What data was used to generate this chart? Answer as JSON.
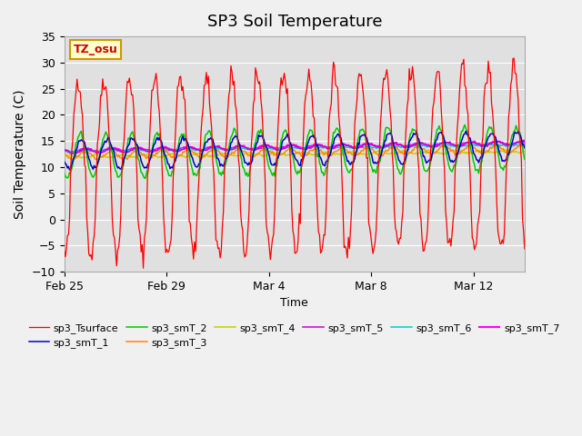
{
  "title": "SP3 Soil Temperature",
  "ylabel": "Soil Temperature (C)",
  "xlabel": "Time",
  "ylim": [
    -10,
    35
  ],
  "annotation_text": "TZ_osu",
  "annotation_bg": "#ffffcc",
  "annotation_border": "#cc9900",
  "series_colors": {
    "sp3_Tsurface": "#ff0000",
    "sp3_smT_1": "#0000cc",
    "sp3_smT_2": "#00cc00",
    "sp3_smT_3": "#ff8800",
    "sp3_smT_4": "#cccc00",
    "sp3_smT_5": "#cc00cc",
    "sp3_smT_6": "#00cccc",
    "sp3_smT_7": "#ff00ff"
  },
  "tick_offsets_days": [
    0,
    4,
    8,
    12,
    16
  ],
  "tick_labels": [
    "Feb 25",
    "Feb 29",
    "Mar 4",
    "Mar 8",
    "Mar 12"
  ],
  "n_days": 18
}
